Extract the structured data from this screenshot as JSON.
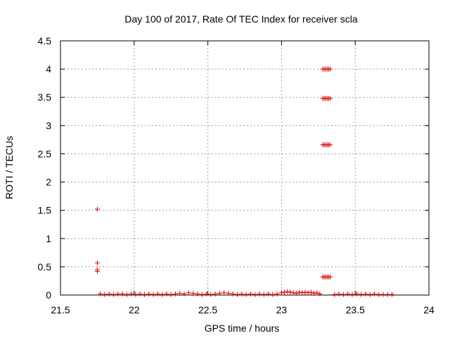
{
  "chart_data": {
    "type": "scatter",
    "title": "Day 100 of 2017, Rate Of TEC Index for receiver scla",
    "xlabel": "GPS time / hours",
    "ylabel": "ROTI / TECUs",
    "xlim": [
      21.5,
      24
    ],
    "ylim": [
      0,
      4.5
    ],
    "grid": true,
    "legend": "none",
    "marker": "+",
    "color": "#e00000",
    "x_ticks": [
      "21.5",
      "22",
      "22.5",
      "23",
      "23.5",
      "24"
    ],
    "y_ticks": [
      "0",
      "0.5",
      "1",
      "1.5",
      "2",
      "2.5",
      "3",
      "3.5",
      "4",
      "4.5"
    ],
    "series": [
      {
        "points": [
          [
            21.75,
            1.52
          ],
          [
            21.75,
            0.57
          ],
          [
            21.75,
            0.45
          ],
          [
            21.75,
            0.42
          ],
          [
            21.77,
            0.02
          ],
          [
            21.8,
            0.01
          ],
          [
            21.83,
            0.02
          ],
          [
            21.86,
            0.01
          ],
          [
            21.89,
            0.02
          ],
          [
            21.92,
            0.02
          ],
          [
            21.95,
            0.01
          ],
          [
            21.98,
            0.02
          ],
          [
            22.01,
            0.01
          ],
          [
            22.04,
            0.02
          ],
          [
            22.07,
            0.01
          ],
          [
            22.1,
            0.02
          ],
          [
            22.13,
            0.01
          ],
          [
            22.16,
            0.02
          ],
          [
            22.19,
            0.01
          ],
          [
            22.22,
            0.02
          ],
          [
            22.25,
            0.01
          ],
          [
            22.28,
            0.02
          ],
          [
            22.31,
            0.03
          ],
          [
            22.34,
            0.02
          ],
          [
            22.37,
            0.04
          ],
          [
            22.4,
            0.03
          ],
          [
            22.43,
            0.02
          ],
          [
            22.46,
            0.01
          ],
          [
            22.49,
            0.02
          ],
          [
            22.52,
            0.01
          ],
          [
            22.55,
            0.02
          ],
          [
            22.58,
            0.03
          ],
          [
            22.61,
            0.04
          ],
          [
            22.64,
            0.03
          ],
          [
            22.67,
            0.02
          ],
          [
            22.7,
            0.01
          ],
          [
            22.73,
            0.02
          ],
          [
            22.76,
            0.01
          ],
          [
            22.79,
            0.02
          ],
          [
            22.82,
            0.01
          ],
          [
            22.85,
            0.02
          ],
          [
            22.88,
            0.01
          ],
          [
            22.91,
            0.02
          ],
          [
            22.94,
            0.01
          ],
          [
            22.97,
            0.02
          ],
          [
            23.0,
            0.04
          ],
          [
            23.02,
            0.05
          ],
          [
            23.04,
            0.06
          ],
          [
            23.06,
            0.05
          ],
          [
            23.08,
            0.04
          ],
          [
            23.1,
            0.03
          ],
          [
            23.12,
            0.05
          ],
          [
            23.14,
            0.04
          ],
          [
            23.16,
            0.05
          ],
          [
            23.18,
            0.04
          ],
          [
            23.2,
            0.05
          ],
          [
            23.22,
            0.03
          ],
          [
            23.24,
            0.04
          ],
          [
            23.26,
            0.02
          ],
          [
            23.36,
            0.01
          ],
          [
            23.39,
            0.02
          ],
          [
            23.42,
            0.01
          ],
          [
            23.45,
            0.02
          ],
          [
            23.48,
            0.01
          ],
          [
            23.51,
            0.02
          ],
          [
            23.54,
            0.01
          ],
          [
            23.57,
            0.02
          ],
          [
            23.6,
            0.01
          ],
          [
            23.63,
            0.02
          ],
          [
            23.66,
            0.01
          ],
          [
            23.69,
            0.01
          ],
          [
            23.72,
            0.01
          ],
          [
            23.75,
            0.01
          ],
          [
            23.28,
            4.0
          ],
          [
            23.29,
            4.0
          ],
          [
            23.3,
            4.0
          ],
          [
            23.31,
            4.0
          ],
          [
            23.32,
            4.0
          ],
          [
            23.33,
            4.0
          ],
          [
            23.28,
            3.48
          ],
          [
            23.29,
            3.48
          ],
          [
            23.3,
            3.48
          ],
          [
            23.31,
            3.48
          ],
          [
            23.32,
            3.48
          ],
          [
            23.33,
            3.48
          ],
          [
            23.28,
            2.66
          ],
          [
            23.29,
            2.66
          ],
          [
            23.3,
            2.66
          ],
          [
            23.31,
            2.66
          ],
          [
            23.32,
            2.66
          ],
          [
            23.33,
            2.66
          ],
          [
            23.28,
            0.32
          ],
          [
            23.29,
            0.32
          ],
          [
            23.3,
            0.32
          ],
          [
            23.31,
            0.32
          ],
          [
            23.32,
            0.32
          ],
          [
            23.33,
            0.32
          ]
        ]
      }
    ]
  }
}
